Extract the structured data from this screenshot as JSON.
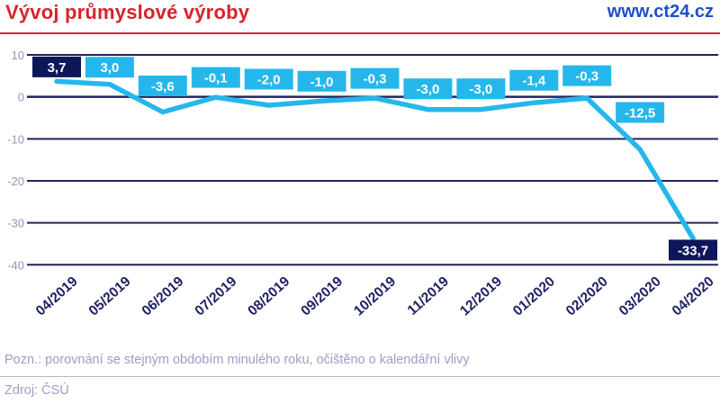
{
  "header": {
    "title": "Vývoj průmyslové výroby",
    "site_url": "www.ct24.cz"
  },
  "footer": {
    "note": "Pozn.: porovnání se stejným obdobím minulého roku, očištěno o kalendářní vlivy",
    "source": "Zdroj: ČSÚ"
  },
  "palette": {
    "title_red": "#d8232a",
    "url_blue": "#1e4fc9",
    "line_cyan": "#25b7ec",
    "label_bg_cyan": "#25b7ec",
    "label_bg_dark": "#0d1758",
    "grid_navy": "#23255c",
    "axis_text_gray": "#9295bb",
    "x_label_navy": "#1e2263",
    "footer_gray": "#9b9ec4"
  },
  "chart_data": {
    "type": "line",
    "title": "Vývoj průmyslové výroby",
    "categories": [
      "04/2019",
      "05/2019",
      "06/2019",
      "07/2019",
      "08/2019",
      "09/2019",
      "10/2019",
      "11/2019",
      "12/2019",
      "01/2020",
      "02/2020",
      "03/2020",
      "04/2020"
    ],
    "values": [
      3.7,
      3.0,
      -3.6,
      -0.1,
      -2.0,
      -1.0,
      -0.3,
      -3.0,
      -3.0,
      -1.4,
      -0.3,
      -12.5,
      -33.7
    ],
    "value_labels": [
      "3,7",
      "3,0",
      "-3,6",
      "-0,1",
      "-2,0",
      "-1,0",
      "-0,3",
      "-3,0",
      "-3,0",
      "-1,4",
      "-0,3",
      "-12,5",
      "-33,7"
    ],
    "dark_label_indices": [
      0,
      12
    ],
    "y_ticks": [
      10,
      0,
      -10,
      -20,
      -30,
      -40
    ],
    "ylim": [
      -40,
      10
    ],
    "xlabel": "",
    "ylabel": "",
    "grid": true,
    "legend": "none",
    "layout_hints": {
      "label_dy": [
        -16,
        -19,
        -29,
        -22,
        -29,
        -22,
        -22,
        -23,
        -23,
        -25,
        -25,
        -41,
        13
      ],
      "x_label_angle_deg": -42
    }
  }
}
